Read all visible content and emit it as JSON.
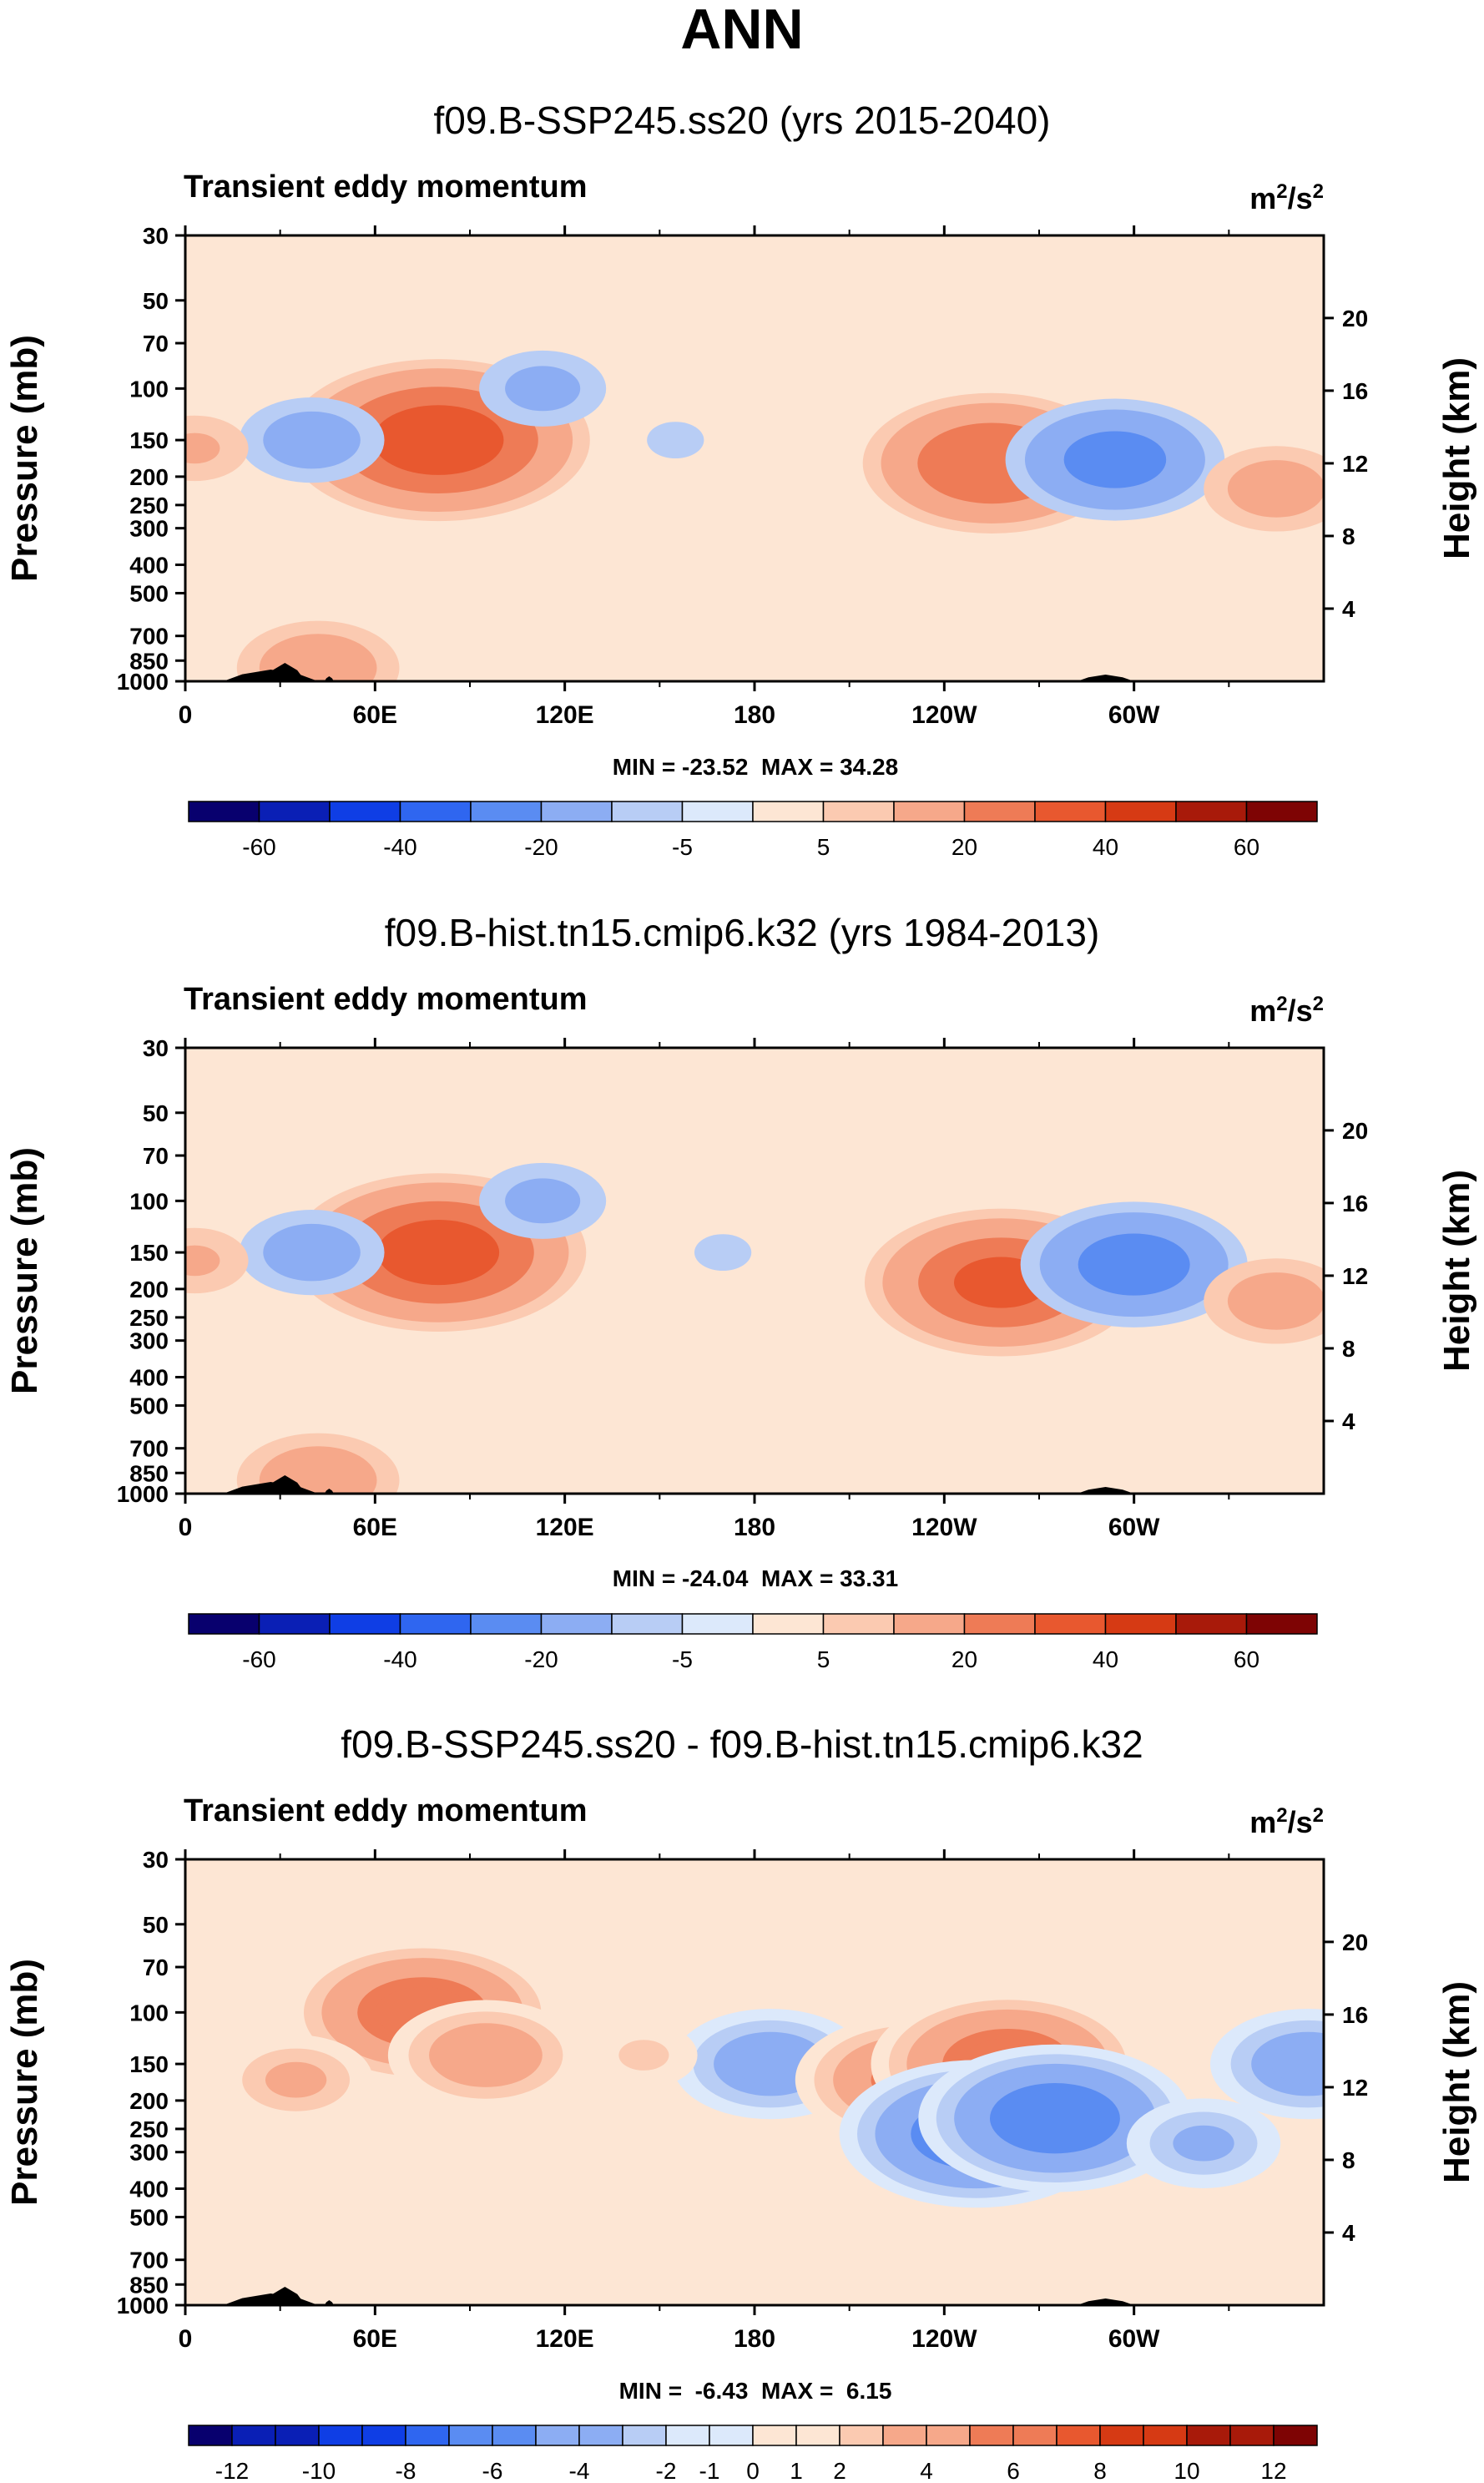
{
  "page_title": "ANN",
  "chart_data": [
    {
      "type": "heatmap",
      "title": "f09.B-SSP245.ss20 (yrs 2015-2040)",
      "subtitle": "Transient eddy momentum",
      "units": "m²/s²",
      "units_base": "m",
      "units_exp1": "2",
      "units_mid": "/s",
      "units_exp2": "2",
      "xlabel": "",
      "ylabel": "Pressure (mb)",
      "ylabel_right": "Height (km)",
      "xticks": [
        {
          "lon": 0,
          "label": "0"
        },
        {
          "lon": 60,
          "label": "60E"
        },
        {
          "lon": 120,
          "label": "120E"
        },
        {
          "lon": 180,
          "label": "180"
        },
        {
          "lon": 240,
          "label": "120W"
        },
        {
          "lon": 300,
          "label": "60W"
        }
      ],
      "yticks": [
        {
          "p": 30,
          "label": "30"
        },
        {
          "p": 50,
          "label": "50"
        },
        {
          "p": 70,
          "label": "70"
        },
        {
          "p": 100,
          "label": "100"
        },
        {
          "p": 150,
          "label": "150"
        },
        {
          "p": 200,
          "label": "200"
        },
        {
          "p": 250,
          "label": "250"
        },
        {
          "p": 300,
          "label": "300"
        },
        {
          "p": 400,
          "label": "400"
        },
        {
          "p": 500,
          "label": "500"
        },
        {
          "p": 700,
          "label": "700"
        },
        {
          "p": 850,
          "label": "850"
        },
        {
          "p": 1000,
          "label": "1000"
        }
      ],
      "height_ticks": [
        {
          "km": 4,
          "label": "4"
        },
        {
          "km": 8,
          "label": "8"
        },
        {
          "km": 12,
          "label": "12"
        },
        {
          "km": 16,
          "label": "16"
        },
        {
          "km": 20,
          "label": "20"
        }
      ],
      "xlim": [
        0,
        360
      ],
      "ylim_mb": [
        1000,
        30
      ],
      "stats": "MIN = -23.52  MAX = 34.28",
      "min": -23.52,
      "max": 34.28,
      "colorbar": {
        "levels": [
          -60,
          -50,
          -40,
          -30,
          -20,
          -10,
          -5,
          0,
          5,
          10,
          20,
          30,
          40,
          50,
          60
        ],
        "labels": [
          {
            "index": 1,
            "label": "-60"
          },
          {
            "index": 3,
            "label": "-40"
          },
          {
            "index": 5,
            "label": "-20"
          },
          {
            "index": 7,
            "label": "-5"
          },
          {
            "index": 9,
            "label": "5"
          },
          {
            "index": 11,
            "label": "20"
          },
          {
            "index": 13,
            "label": "40"
          },
          {
            "index": 15,
            "label": "60"
          }
        ]
      },
      "features": [
        {
          "lon": 80,
          "p": 150,
          "value": 34
        },
        {
          "lon": 40,
          "p": 150,
          "value": -14
        },
        {
          "lon": 113,
          "p": 100,
          "value": -12
        },
        {
          "lon": 155,
          "p": 150,
          "value": -6
        },
        {
          "lon": 255,
          "p": 180,
          "value": 28
        },
        {
          "lon": 294,
          "p": 175,
          "value": -23
        },
        {
          "lon": 345,
          "p": 220,
          "value": 14
        },
        {
          "lon": 3,
          "p": 160,
          "value": 10
        },
        {
          "lon": 42,
          "p": 900,
          "value": 16
        }
      ]
    },
    {
      "type": "heatmap",
      "title": "f09.B-hist.tn15.cmip6.k32 (yrs 1984-2013)",
      "subtitle": "Transient eddy momentum",
      "units": "m²/s²",
      "units_base": "m",
      "units_exp1": "2",
      "units_mid": "/s",
      "units_exp2": "2",
      "xlabel": "",
      "ylabel": "Pressure (mb)",
      "ylabel_right": "Height (km)",
      "xticks": [
        {
          "lon": 0,
          "label": "0"
        },
        {
          "lon": 60,
          "label": "60E"
        },
        {
          "lon": 120,
          "label": "120E"
        },
        {
          "lon": 180,
          "label": "180"
        },
        {
          "lon": 240,
          "label": "120W"
        },
        {
          "lon": 300,
          "label": "60W"
        }
      ],
      "yticks": [
        {
          "p": 30,
          "label": "30"
        },
        {
          "p": 50,
          "label": "50"
        },
        {
          "p": 70,
          "label": "70"
        },
        {
          "p": 100,
          "label": "100"
        },
        {
          "p": 150,
          "label": "150"
        },
        {
          "p": 200,
          "label": "200"
        },
        {
          "p": 250,
          "label": "250"
        },
        {
          "p": 300,
          "label": "300"
        },
        {
          "p": 400,
          "label": "400"
        },
        {
          "p": 500,
          "label": "500"
        },
        {
          "p": 700,
          "label": "700"
        },
        {
          "p": 850,
          "label": "850"
        },
        {
          "p": 1000,
          "label": "1000"
        }
      ],
      "height_ticks": [
        {
          "km": 4,
          "label": "4"
        },
        {
          "km": 8,
          "label": "8"
        },
        {
          "km": 12,
          "label": "12"
        },
        {
          "km": 16,
          "label": "16"
        },
        {
          "km": 20,
          "label": "20"
        }
      ],
      "xlim": [
        0,
        360
      ],
      "ylim_mb": [
        1000,
        30
      ],
      "stats": "MIN = -24.04  MAX = 33.31",
      "min": -24.04,
      "max": 33.31,
      "colorbar": {
        "levels": [
          -60,
          -50,
          -40,
          -30,
          -20,
          -10,
          -5,
          0,
          5,
          10,
          20,
          30,
          40,
          50,
          60
        ],
        "labels": [
          {
            "index": 1,
            "label": "-60"
          },
          {
            "index": 3,
            "label": "-40"
          },
          {
            "index": 5,
            "label": "-20"
          },
          {
            "index": 7,
            "label": "-5"
          },
          {
            "index": 9,
            "label": "5"
          },
          {
            "index": 11,
            "label": "20"
          },
          {
            "index": 13,
            "label": "40"
          },
          {
            "index": 15,
            "label": "60"
          }
        ]
      },
      "features": [
        {
          "lon": 80,
          "p": 150,
          "value": 33
        },
        {
          "lon": 40,
          "p": 150,
          "value": -14
        },
        {
          "lon": 113,
          "p": 100,
          "value": -12
        },
        {
          "lon": 170,
          "p": 150,
          "value": -6
        },
        {
          "lon": 258,
          "p": 190,
          "value": 30
        },
        {
          "lon": 300,
          "p": 165,
          "value": -24
        },
        {
          "lon": 345,
          "p": 220,
          "value": 14
        },
        {
          "lon": 3,
          "p": 160,
          "value": 10
        },
        {
          "lon": 42,
          "p": 900,
          "value": 16
        }
      ]
    },
    {
      "type": "heatmap",
      "title": "f09.B-SSP245.ss20 - f09.B-hist.tn15.cmip6.k32",
      "subtitle": "Transient eddy momentum",
      "units": "m²/s²",
      "units_base": "m",
      "units_exp1": "2",
      "units_mid": "/s",
      "units_exp2": "2",
      "xlabel": "",
      "ylabel": "Pressure (mb)",
      "ylabel_right": "Height (km)",
      "xticks": [
        {
          "lon": 0,
          "label": "0"
        },
        {
          "lon": 60,
          "label": "60E"
        },
        {
          "lon": 120,
          "label": "120E"
        },
        {
          "lon": 180,
          "label": "180"
        },
        {
          "lon": 240,
          "label": "120W"
        },
        {
          "lon": 300,
          "label": "60W"
        }
      ],
      "yticks": [
        {
          "p": 30,
          "label": "30"
        },
        {
          "p": 50,
          "label": "50"
        },
        {
          "p": 70,
          "label": "70"
        },
        {
          "p": 100,
          "label": "100"
        },
        {
          "p": 150,
          "label": "150"
        },
        {
          "p": 200,
          "label": "200"
        },
        {
          "p": 250,
          "label": "250"
        },
        {
          "p": 300,
          "label": "300"
        },
        {
          "p": 400,
          "label": "400"
        },
        {
          "p": 500,
          "label": "500"
        },
        {
          "p": 700,
          "label": "700"
        },
        {
          "p": 850,
          "label": "850"
        },
        {
          "p": 1000,
          "label": "1000"
        }
      ],
      "height_ticks": [
        {
          "km": 4,
          "label": "4"
        },
        {
          "km": 8,
          "label": "8"
        },
        {
          "km": 12,
          "label": "12"
        },
        {
          "km": 16,
          "label": "16"
        },
        {
          "km": 20,
          "label": "20"
        }
      ],
      "xlim": [
        0,
        360
      ],
      "ylim_mb": [
        1000,
        30
      ],
      "stats": "MIN =  -6.43  MAX =  6.15",
      "min": -6.43,
      "max": 6.15,
      "colorbar": {
        "levels": [
          -12,
          -11,
          -10,
          -9,
          -8,
          -7,
          -6,
          -5,
          -4,
          -3,
          -2,
          -1,
          0,
          1,
          2,
          3,
          4,
          5,
          6,
          7,
          8,
          9,
          10,
          11,
          12
        ],
        "labels": [
          {
            "index": 1,
            "label": "-12"
          },
          {
            "index": 3,
            "label": "-10"
          },
          {
            "index": 5,
            "label": "-8"
          },
          {
            "index": 7,
            "label": "-6"
          },
          {
            "index": 9,
            "label": "-4"
          },
          {
            "index": 11,
            "label": "-2"
          },
          {
            "index": 12,
            "label": "-1"
          },
          {
            "index": 13,
            "label": "0"
          },
          {
            "index": 14,
            "label": "1"
          },
          {
            "index": 15,
            "label": "2"
          },
          {
            "index": 17,
            "label": "4"
          },
          {
            "index": 19,
            "label": "6"
          },
          {
            "index": 21,
            "label": "8"
          },
          {
            "index": 23,
            "label": "10"
          },
          {
            "index": 25,
            "label": "12"
          }
        ]
      },
      "features": [
        {
          "lon": 75,
          "p": 100,
          "value": 6
        },
        {
          "lon": 95,
          "p": 140,
          "value": 4
        },
        {
          "lon": 185,
          "p": 150,
          "value": -4
        },
        {
          "lon": 230,
          "p": 170,
          "value": 5
        },
        {
          "lon": 260,
          "p": 150,
          "value": 6
        },
        {
          "lon": 250,
          "p": 260,
          "value": -6
        },
        {
          "lon": 275,
          "p": 230,
          "value": -6
        },
        {
          "lon": 322,
          "p": 280,
          "value": -3
        },
        {
          "lon": 355,
          "p": 150,
          "value": -4
        },
        {
          "lon": 35,
          "p": 170,
          "value": 3
        },
        {
          "lon": 145,
          "p": 140,
          "value": 2
        }
      ]
    }
  ]
}
